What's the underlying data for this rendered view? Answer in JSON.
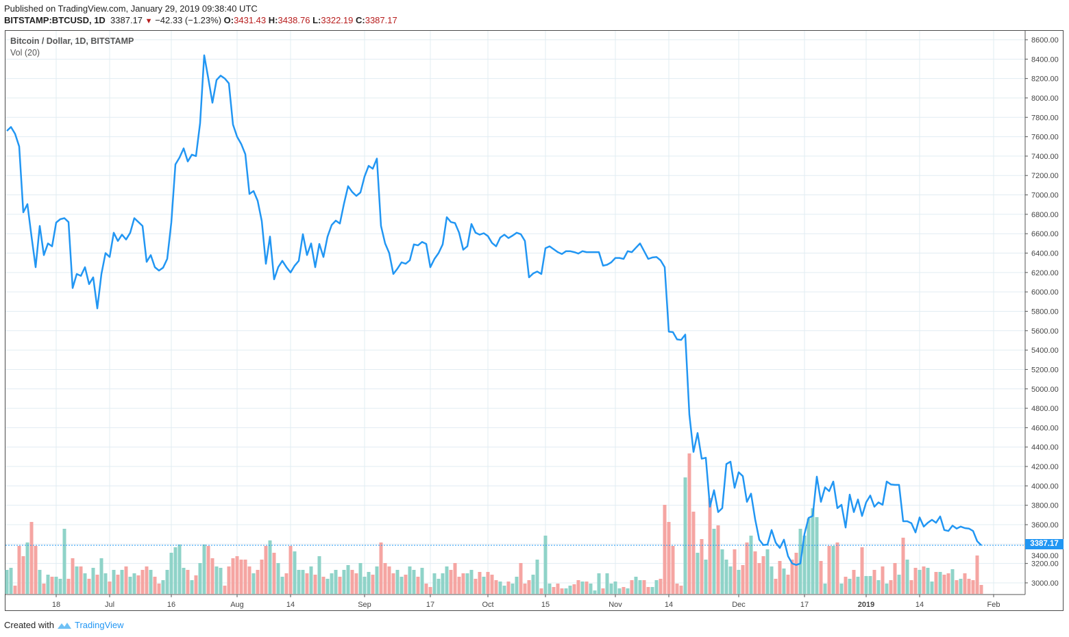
{
  "header": {
    "published": "Published on TradingView.com, January 29, 2019 09:38:40 UTC",
    "symbol": "BITSTAMP:BTCUSD, 1D",
    "last": "3387.17",
    "change": "−42.33 (−1.23%)",
    "o_label": "O:",
    "o": "3431.43",
    "h_label": "H:",
    "h": "3438.76",
    "l_label": "L:",
    "l": "3322.19",
    "c_label": "C:",
    "c": "3387.17"
  },
  "legend": {
    "title": "Bitcoin / Dollar, 1D, BITSTAMP",
    "volume": "Vol (20)"
  },
  "footer": {
    "created": "Created with",
    "brand": "TradingView"
  },
  "colors": {
    "line": "#2196f3",
    "up": "#8fd3c8",
    "down": "#f5a5a2",
    "grid": "#e1ecf2"
  },
  "chart_data": {
    "type": "line",
    "title": "Bitcoin / Dollar, 1D, BITSTAMP",
    "start_date": "2018-06-06",
    "last_value_label": "3387.17",
    "last_value": 3387.17,
    "ylim": [
      2850,
      8700
    ],
    "y_ticks": [
      "3000.00",
      "3200.00",
      "3400.00",
      "3600.00",
      "3800.00",
      "4000.00",
      "4200.00",
      "4400.00",
      "4600.00",
      "4800.00",
      "5000.00",
      "5200.00",
      "5400.00",
      "5600.00",
      "5800.00",
      "6000.00",
      "6200.00",
      "6400.00",
      "6600.00",
      "6800.00",
      "7000.00",
      "7200.00",
      "7400.00",
      "7600.00",
      "7800.00",
      "8000.00",
      "8200.00",
      "8400.00",
      "8600.00"
    ],
    "x_ticks": [
      {
        "label": "18",
        "day": 12
      },
      {
        "label": "Jul",
        "day": 25
      },
      {
        "label": "16",
        "day": 40
      },
      {
        "label": "Aug",
        "day": 56
      },
      {
        "label": "14",
        "day": 69
      },
      {
        "label": "Sep",
        "day": 87
      },
      {
        "label": "17",
        "day": 103
      },
      {
        "label": "Oct",
        "day": 117
      },
      {
        "label": "15",
        "day": 131
      },
      {
        "label": "Nov",
        "day": 148
      },
      {
        "label": "14",
        "day": 161
      },
      {
        "label": "Dec",
        "day": 178
      },
      {
        "label": "17",
        "day": 194
      },
      {
        "label": "2019",
        "day": 209,
        "bold": true
      },
      {
        "label": "14",
        "day": 222
      },
      {
        "label": "Feb",
        "day": 240
      }
    ],
    "close": [
      7660,
      7700,
      7630,
      7500,
      6820,
      6905,
      6570,
      6255,
      6680,
      6380,
      6500,
      6470,
      6715,
      6750,
      6760,
      6720,
      6040,
      6185,
      6165,
      6255,
      6080,
      6150,
      5830,
      6185,
      6400,
      6360,
      6610,
      6525,
      6590,
      6540,
      6610,
      6760,
      6720,
      6680,
      6310,
      6380,
      6255,
      6220,
      6250,
      6340,
      6715,
      7315,
      7385,
      7480,
      7345,
      7415,
      7400,
      7740,
      8440,
      8200,
      7950,
      8185,
      8230,
      8200,
      8150,
      7725,
      7600,
      7525,
      7420,
      7010,
      7040,
      6940,
      6730,
      6290,
      6570,
      6130,
      6255,
      6320,
      6255,
      6200,
      6270,
      6320,
      6595,
      6380,
      6500,
      6255,
      6495,
      6360,
      6570,
      6690,
      6735,
      6705,
      6910,
      7090,
      7030,
      6990,
      7025,
      7190,
      7300,
      7270,
      7375,
      6680,
      6500,
      6400,
      6185,
      6240,
      6305,
      6290,
      6325,
      6490,
      6480,
      6515,
      6495,
      6255,
      6340,
      6400,
      6490,
      6770,
      6720,
      6710,
      6610,
      6435,
      6470,
      6700,
      6610,
      6590,
      6605,
      6575,
      6505,
      6470,
      6560,
      6590,
      6555,
      6580,
      6610,
      6595,
      6525,
      6150,
      6190,
      6210,
      6185,
      6450,
      6470,
      6440,
      6410,
      6390,
      6420,
      6420,
      6410,
      6395,
      6420,
      6410,
      6410,
      6410,
      6410,
      6270,
      6280,
      6305,
      6350,
      6350,
      6340,
      6420,
      6410,
      6455,
      6500,
      6420,
      6340,
      6355,
      6360,
      6325,
      6255,
      5590,
      5585,
      5510,
      5505,
      5560,
      4735,
      4350,
      4545,
      4280,
      4290,
      3785,
      3955,
      3730,
      3770,
      4225,
      4250,
      3980,
      4140,
      4100,
      3835,
      3920,
      3655,
      3445,
      3390,
      3395,
      3545,
      3415,
      3360,
      3445,
      3275,
      3200,
      3185,
      3200,
      3505,
      3670,
      3690,
      4095,
      3835,
      3985,
      3945,
      4045,
      3770,
      3805,
      3570,
      3910,
      3730,
      3860,
      3690,
      3830,
      3900,
      3785,
      3830,
      3805,
      4045,
      4015,
      4010,
      4010,
      3635,
      3635,
      3615,
      3520,
      3675,
      3580,
      3620,
      3650,
      3620,
      3685,
      3545,
      3535,
      3590,
      3560,
      3580,
      3565,
      3560,
      3535,
      3430,
      3387.17
    ],
    "volume": [
      35,
      38,
      12,
      70,
      55,
      75,
      105,
      70,
      35,
      15,
      28,
      25,
      25,
      22,
      95,
      22,
      52,
      40,
      40,
      30,
      22,
      38,
      28,
      52,
      30,
      18,
      35,
      28,
      35,
      40,
      25,
      30,
      27,
      35,
      40,
      35,
      25,
      15,
      20,
      35,
      60,
      68,
      72,
      38,
      35,
      20,
      27,
      45,
      72,
      70,
      52,
      40,
      38,
      12,
      40,
      52,
      55,
      50,
      50,
      40,
      30,
      35,
      50,
      70,
      78,
      60,
      45,
      25,
      30,
      70,
      62,
      35,
      35,
      30,
      40,
      28,
      55,
      25,
      22,
      30,
      35,
      25,
      35,
      42,
      35,
      30,
      45,
      25,
      32,
      28,
      40,
      75,
      45,
      40,
      30,
      35,
      25,
      28,
      40,
      35,
      25,
      38,
      15,
      10,
      30,
      22,
      30,
      40,
      35,
      45,
      25,
      30,
      30,
      35,
      22,
      32,
      25,
      32,
      28,
      20,
      18,
      12,
      18,
      15,
      25,
      45,
      15,
      20,
      28,
      50,
      8,
      85,
      15,
      10,
      15,
      8,
      8,
      12,
      14,
      20,
      18,
      18,
      15,
      5,
      30,
      8,
      30,
      15,
      18,
      8,
      10,
      8,
      20,
      25,
      20,
      20,
      10,
      10,
      20,
      22,
      130,
      105,
      70,
      15,
      12,
      170,
      205,
      120,
      60,
      80,
      50,
      140,
      95,
      100,
      65,
      50,
      40,
      65,
      35,
      42,
      75,
      85,
      62,
      45,
      55,
      65,
      40,
      22,
      48,
      37,
      28,
      50,
      60,
      95,
      85,
      110,
      125,
      112,
      48,
      15,
      70,
      70,
      75,
      15,
      25,
      22,
      35,
      25,
      68,
      26,
      26,
      35,
      20,
      40,
      15,
      20,
      45,
      28,
      82,
      50,
      20,
      38,
      35,
      40,
      38,
      18,
      32,
      32,
      28,
      30,
      36,
      20,
      22,
      30,
      22,
      20,
      56,
      13
    ]
  }
}
